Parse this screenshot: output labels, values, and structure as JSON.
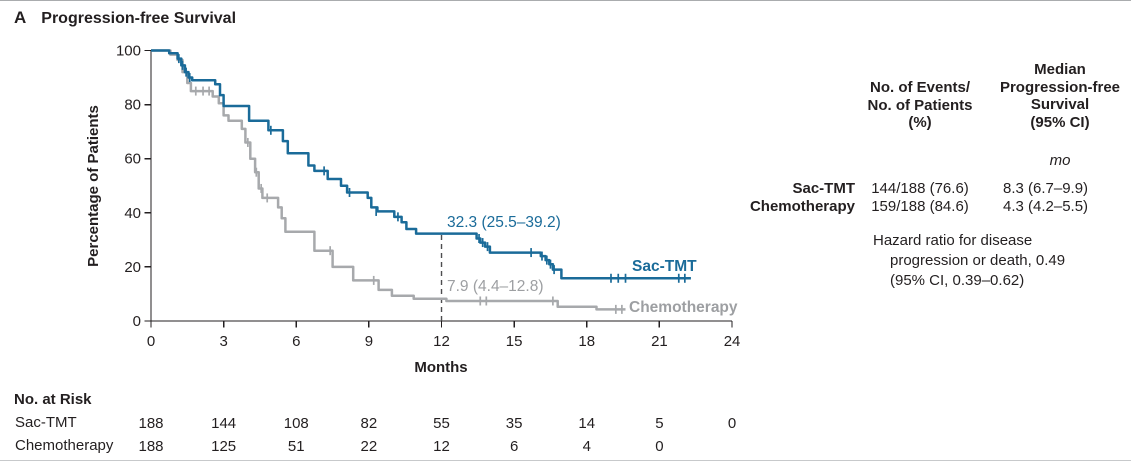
{
  "title": {
    "letter": "A",
    "text": "Progression-free Survival"
  },
  "chart_data": {
    "type": "line",
    "subtype": "kaplan-meier-step",
    "title": "Progression-free Survival",
    "xlabel": "Months",
    "ylabel": "Percentage of Patients",
    "xlim": [
      0,
      24
    ],
    "ylim": [
      0,
      100
    ],
    "x_ticks": [
      0,
      3,
      6,
      9,
      12,
      15,
      18,
      21,
      24
    ],
    "y_ticks": [
      0,
      20,
      40,
      60,
      80,
      100
    ],
    "grid": "off",
    "reference_line": {
      "month": 12,
      "to_percent": 32.3,
      "style": "dashed",
      "color": "#4d4d4f"
    },
    "series": [
      {
        "name": "Sac-TMT",
        "color": "#1a6b99",
        "annotation": "32.3 (25.5–39.2)",
        "steps": [
          [
            0,
            100
          ],
          [
            0.75,
            99
          ],
          [
            1.1,
            97
          ],
          [
            1.25,
            94.5
          ],
          [
            1.4,
            92
          ],
          [
            1.55,
            90
          ],
          [
            1.7,
            89
          ],
          [
            2.65,
            87.5
          ],
          [
            2.85,
            83.5
          ],
          [
            3.0,
            79.5
          ],
          [
            4.05,
            74
          ],
          [
            4.85,
            70.5
          ],
          [
            5.45,
            66.5
          ],
          [
            5.65,
            62
          ],
          [
            6.5,
            57.5
          ],
          [
            6.75,
            55.5
          ],
          [
            7.3,
            52.5
          ],
          [
            7.85,
            50
          ],
          [
            8.1,
            47.5
          ],
          [
            8.95,
            45.5
          ],
          [
            9.1,
            42
          ],
          [
            9.35,
            40.5
          ],
          [
            10.05,
            38.5
          ],
          [
            10.35,
            36.5
          ],
          [
            10.55,
            34
          ],
          [
            10.95,
            32.3
          ],
          [
            13.45,
            30.5
          ],
          [
            13.6,
            29
          ],
          [
            13.8,
            27.5
          ],
          [
            14.0,
            25.3
          ],
          [
            16.1,
            24
          ],
          [
            16.3,
            22.5
          ],
          [
            16.45,
            21
          ],
          [
            16.6,
            19
          ],
          [
            16.95,
            15.8
          ],
          [
            22.3,
            15.8
          ]
        ],
        "censors": [
          [
            1.15,
            97
          ],
          [
            1.3,
            94.5
          ],
          [
            1.45,
            92
          ],
          [
            1.6,
            90
          ],
          [
            4.95,
            70.5
          ],
          [
            7.15,
            55.5
          ],
          [
            8.2,
            47.5
          ],
          [
            9.3,
            40.5
          ],
          [
            10.2,
            38.5
          ],
          [
            13.55,
            30.5
          ],
          [
            13.7,
            29
          ],
          [
            13.9,
            27.5
          ],
          [
            15.7,
            25.3
          ],
          [
            16.15,
            24
          ],
          [
            16.35,
            22.5
          ],
          [
            16.5,
            21
          ],
          [
            16.65,
            19
          ],
          [
            19.0,
            15.8
          ],
          [
            19.3,
            15.8
          ],
          [
            19.6,
            15.8
          ],
          [
            21.8,
            15.8
          ],
          [
            22.05,
            15.8
          ]
        ]
      },
      {
        "name": "Chemotherapy",
        "color": "#a7a9ac",
        "annotation": "7.9 (4.4–12.8)",
        "steps": [
          [
            0,
            100
          ],
          [
            0.8,
            98.5
          ],
          [
            1.1,
            96.5
          ],
          [
            1.3,
            92
          ],
          [
            1.5,
            88
          ],
          [
            1.65,
            85
          ],
          [
            2.55,
            83
          ],
          [
            2.8,
            80.5
          ],
          [
            3.0,
            76
          ],
          [
            3.2,
            74
          ],
          [
            3.75,
            71
          ],
          [
            3.9,
            66
          ],
          [
            4.1,
            60
          ],
          [
            4.3,
            55
          ],
          [
            4.45,
            49
          ],
          [
            4.6,
            45.5
          ],
          [
            5.25,
            42
          ],
          [
            5.4,
            38
          ],
          [
            5.55,
            33
          ],
          [
            6.75,
            26
          ],
          [
            7.5,
            20
          ],
          [
            8.35,
            15
          ],
          [
            9.4,
            11.5
          ],
          [
            9.95,
            9.3
          ],
          [
            10.85,
            8.2
          ],
          [
            12.2,
            7.4
          ],
          [
            16.8,
            5.3
          ],
          [
            18.4,
            4.3
          ],
          [
            19.6,
            4.3
          ]
        ],
        "censors": [
          [
            1.85,
            85
          ],
          [
            2.15,
            85
          ],
          [
            2.4,
            85
          ],
          [
            4.0,
            66
          ],
          [
            4.35,
            55
          ],
          [
            4.55,
            49
          ],
          [
            4.8,
            45.5
          ],
          [
            7.4,
            26
          ],
          [
            9.2,
            15
          ],
          [
            13.6,
            7.4
          ],
          [
            13.85,
            7.4
          ],
          [
            16.6,
            7.4
          ],
          [
            19.2,
            4.3
          ],
          [
            19.45,
            4.3
          ]
        ]
      }
    ]
  },
  "summary_table": {
    "events_header": [
      "No. of Events/",
      "No. of Patients",
      "(%)"
    ],
    "median_header": [
      "Median",
      "Progression-free",
      "Survival",
      "(95% CI)"
    ],
    "unit": "mo",
    "rows": [
      {
        "label": "Sac-TMT",
        "events": "144/188 (76.6)",
        "median": "8.3 (6.7–9.9)"
      },
      {
        "label": "Chemotherapy",
        "events": "159/188 (84.6)",
        "median": "4.3 (4.2–5.5)"
      }
    ],
    "hazard_lines": [
      "Hazard ratio for disease",
      "progression or death, 0.49",
      "(95% CI, 0.39–0.62)"
    ]
  },
  "risk_table": {
    "title": "No. at Risk",
    "columns": [
      0,
      3,
      6,
      9,
      12,
      15,
      18,
      21,
      24
    ],
    "rows": [
      {
        "label": "Sac-TMT",
        "values": [
          "188",
          "144",
          "108",
          "82",
          "55",
          "35",
          "14",
          "5",
          "0"
        ]
      },
      {
        "label": "Chemotherapy",
        "values": [
          "188",
          "125",
          "51",
          "22",
          "12",
          "6",
          "4",
          "0"
        ]
      }
    ]
  }
}
